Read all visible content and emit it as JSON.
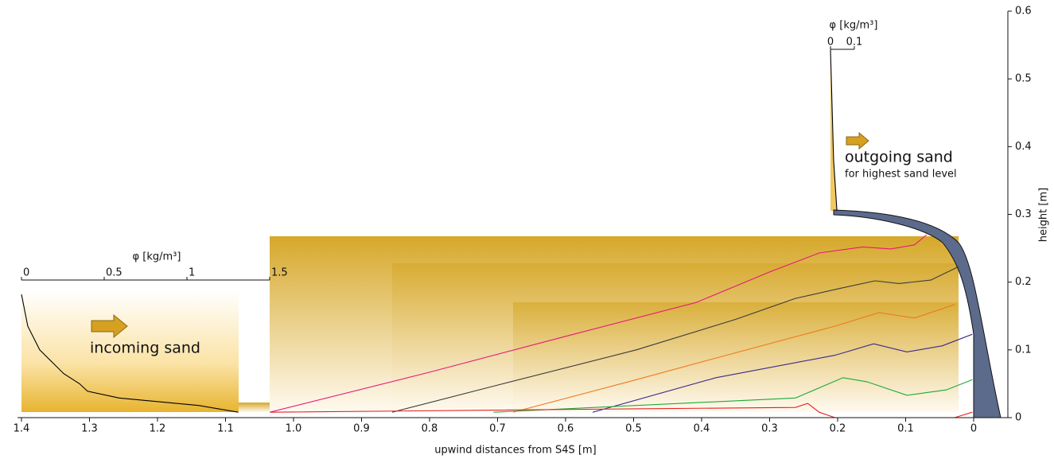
{
  "chart_data": [
    {
      "type": "line",
      "xlabel": "upwind distances from S4S [m]",
      "ylabel": "height [m]",
      "xlim": [
        1.4,
        0
      ],
      "ylim": [
        0,
        0.6
      ],
      "xticks": [
        1.4,
        1.3,
        1.2,
        1.1,
        {
          "value": 1,
          "label": "1.0"
        },
        0.9,
        0.8,
        0.7,
        0.6,
        0.5,
        0.4,
        0.3,
        0.2,
        0.1,
        0
      ],
      "yticks": [
        0,
        0.1,
        0.2,
        0.3,
        0.4,
        0.5,
        0.6
      ],
      "series": [
        {
          "color": "#e6197a",
          "x": [
            1.035,
            0.8,
            0.6,
            0.408,
            0.3,
            0.227,
            0.163,
            0.122,
            0.087,
            0.069
          ],
          "values": [
            0.008,
            0.067,
            0.12,
            0.17,
            0.215,
            0.243,
            0.252,
            0.249,
            0.255,
            0.27
          ]
        },
        {
          "color": "#3a3a3a",
          "x": [
            0.855,
            0.7,
            0.496,
            0.35,
            0.262,
            0.2,
            0.145,
            0.11,
            0.063,
            0.022
          ],
          "values": [
            0.008,
            0.048,
            0.1,
            0.145,
            0.176,
            0.19,
            0.202,
            0.198,
            0.203,
            0.223
          ]
        },
        {
          "color": "#f07a1a",
          "x": [
            0.677,
            0.5,
            0.379,
            0.204,
            0.139,
            0.087,
            0.028
          ],
          "values": [
            0.008,
            0.055,
            0.088,
            0.135,
            0.155,
            0.147,
            0.167
          ]
        },
        {
          "color": "#3a2a8a",
          "x": [
            0.56,
            0.379,
            0.204,
            0.147,
            0.098,
            0.046,
            0.002
          ],
          "values": [
            0.008,
            0.059,
            0.092,
            0.109,
            0.097,
            0.106,
            0.123
          ]
        },
        {
          "color": "#1aaa3a",
          "x": [
            0.706,
            0.496,
            0.262,
            0.192,
            0.157,
            0.098,
            0.04,
            0.002
          ],
          "values": [
            0.008,
            0.018,
            0.029,
            0.059,
            0.053,
            0.033,
            0.041,
            0.056
          ]
        },
        {
          "color": "#e62020",
          "x": [
            1.034,
            0.496,
            0.262,
            0.244,
            0.227,
            0.204,
            0.028,
            0.002
          ],
          "values": [
            0.008,
            0.013,
            0.015,
            0.021,
            0.008,
            0,
            0,
            0.008
          ]
        }
      ]
    },
    {
      "type": "line",
      "xlabel": "φ [kg/m³]",
      "annotation": "incoming sand",
      "xlim": [
        0,
        1.5
      ],
      "xticks": [
        0,
        0.5,
        1,
        1.5
      ],
      "series": [
        {
          "color": "#000000",
          "x": [
            0,
            0.038,
            0.11,
            0.255,
            0.351,
            0.399,
            0.59,
            1.07,
            1.31
          ],
          "values": [
            0.182,
            0.135,
            0.1,
            0.065,
            0.05,
            0.039,
            0.029,
            0.018,
            0.008
          ]
        }
      ]
    },
    {
      "type": "line",
      "xlabel": "φ [kg/m³]",
      "annotation": "outgoing sand",
      "subannotation": "for highest sand level",
      "xlim": [
        0,
        0.1
      ],
      "xticks": [
        0,
        0.1
      ],
      "series": [
        {
          "color": "#000000",
          "x": [
            0,
            0.013,
            0.027
          ],
          "values": [
            0.543,
            0.381,
            0.305
          ]
        }
      ]
    }
  ]
}
